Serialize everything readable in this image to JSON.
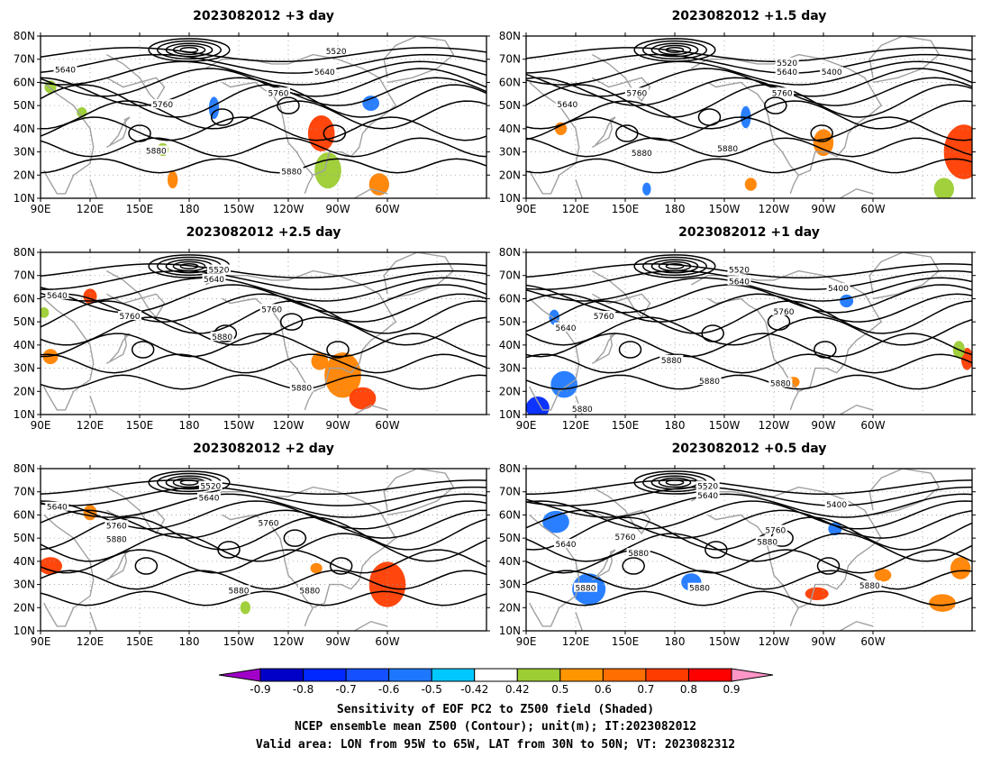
{
  "panels": [
    {
      "title": "2023082012  +3 day",
      "contour_labels": [
        "5640",
        "5520",
        "5640",
        "5760",
        "5760",
        "5880",
        "5880"
      ],
      "shading": [
        {
          "lon": 260,
          "lat": 38,
          "w": 14,
          "h": 14,
          "c": "#ff3c00"
        },
        {
          "lon": 264,
          "lat": 22,
          "w": 14,
          "h": 14,
          "c": "#9ccd32"
        },
        {
          "lon": 295,
          "lat": 16,
          "w": 10,
          "h": 8,
          "c": "#ff8200"
        },
        {
          "lon": 195,
          "lat": 49,
          "w": 4,
          "h": 8,
          "c": "#1e78ff"
        },
        {
          "lon": 290,
          "lat": 51,
          "w": 8,
          "h": 5,
          "c": "#1e78ff"
        },
        {
          "lon": 96,
          "lat": 58,
          "w": 5,
          "h": 4,
          "c": "#9ccd32"
        },
        {
          "lon": 115,
          "lat": 47,
          "w": 4,
          "h": 3,
          "c": "#9ccd32"
        },
        {
          "lon": 164,
          "lat": 31,
          "w": 5,
          "h": 4,
          "c": "#9ccd32"
        },
        {
          "lon": 170,
          "lat": 18,
          "w": 4,
          "h": 6,
          "c": "#ff8200"
        }
      ],
      "label_pos": [
        [
          105,
          65
        ],
        [
          269,
          73
        ],
        [
          262,
          64
        ],
        [
          164,
          50
        ],
        [
          234,
          55
        ],
        [
          160,
          30
        ],
        [
          242,
          21
        ]
      ]
    },
    {
      "title": "2023082012  +1.5 day",
      "contour_labels": [
        "5520",
        "5640",
        "5400",
        "5640",
        "5760",
        "5760",
        "5880",
        "5880"
      ],
      "shading": [
        {
          "lon": 355,
          "lat": 30,
          "w": 22,
          "h": 22,
          "c": "#ff3c00"
        },
        {
          "lon": 270,
          "lat": 34,
          "w": 10,
          "h": 10,
          "c": "#ff8200"
        },
        {
          "lon": 343,
          "lat": 14,
          "w": 10,
          "h": 8,
          "c": "#9ccd32"
        },
        {
          "lon": 223,
          "lat": 45,
          "w": 4,
          "h": 8,
          "c": "#1e78ff"
        },
        {
          "lon": 111,
          "lat": 40,
          "w": 5,
          "h": 4,
          "c": "#ff8200"
        },
        {
          "lon": 163,
          "lat": 14,
          "w": 3,
          "h": 4,
          "c": "#1e78ff"
        },
        {
          "lon": 226,
          "lat": 16,
          "w": 5,
          "h": 4,
          "c": "#ff8200"
        }
      ],
      "label_pos": [
        [
          248,
          68
        ],
        [
          248,
          64
        ],
        [
          275,
          64
        ],
        [
          115,
          50
        ],
        [
          157,
          55
        ],
        [
          245,
          55
        ],
        [
          160,
          29
        ],
        [
          212,
          31
        ],
        [
          252,
          25
        ]
      ]
    },
    {
      "title": "2023082012  +2.5 day",
      "contour_labels": [
        "5520",
        "5640",
        "5640",
        "5760",
        "5760",
        "5880",
        "5880"
      ],
      "shading": [
        {
          "lon": 273,
          "lat": 27,
          "w": 20,
          "h": 18,
          "c": "#ff8200"
        },
        {
          "lon": 285,
          "lat": 17,
          "w": 14,
          "h": 8,
          "c": "#ff3c00"
        },
        {
          "lon": 259,
          "lat": 33,
          "w": 8,
          "h": 6,
          "c": "#ff8200"
        },
        {
          "lon": 120,
          "lat": 61,
          "w": 6,
          "h": 5,
          "c": "#ff3c00"
        },
        {
          "lon": 96,
          "lat": 35,
          "w": 7,
          "h": 5,
          "c": "#ff8200"
        },
        {
          "lon": 92,
          "lat": 54,
          "w": 4,
          "h": 3,
          "c": "#9ccd32"
        }
      ],
      "label_pos": [
        [
          198,
          72
        ],
        [
          195,
          68
        ],
        [
          100,
          61
        ],
        [
          144,
          52
        ],
        [
          230,
          55
        ],
        [
          200,
          43
        ],
        [
          248,
          21
        ]
      ]
    },
    {
      "title": "2023082012  +1 day",
      "contour_labels": [
        "5520",
        "5640",
        "5400",
        "5640",
        "5760",
        "5760",
        "5880",
        "5880",
        "5880",
        "5880"
      ],
      "shading": [
        {
          "lon": 357,
          "lat": 34,
          "w": 5,
          "h": 8,
          "c": "#ff3c00"
        },
        {
          "lon": 113,
          "lat": 23,
          "w": 14,
          "h": 10,
          "c": "#1e78ff"
        },
        {
          "lon": 97,
          "lat": 13,
          "w": 12,
          "h": 8,
          "c": "#0028ff"
        },
        {
          "lon": 107,
          "lat": 52,
          "w": 4,
          "h": 5,
          "c": "#1e78ff"
        },
        {
          "lon": 284,
          "lat": 59,
          "w": 6,
          "h": 4,
          "c": "#1e78ff"
        },
        {
          "lon": 252,
          "lat": 24,
          "w": 5,
          "h": 3,
          "c": "#ff8200"
        },
        {
          "lon": 352,
          "lat": 38,
          "w": 5,
          "h": 6,
          "c": "#9ccd32"
        }
      ],
      "label_pos": [
        [
          219,
          72
        ],
        [
          219,
          67
        ],
        [
          279,
          64
        ],
        [
          114,
          47
        ],
        [
          137,
          52
        ],
        [
          246,
          54
        ],
        [
          178,
          33
        ],
        [
          201,
          24
        ],
        [
          244,
          23
        ],
        [
          124,
          12
        ]
      ]
    },
    {
      "title": "2023082012  +2 day",
      "contour_labels": [
        "5520",
        "5640",
        "5640",
        "5760",
        "5760",
        "5880",
        "5880",
        "5880"
      ],
      "shading": [
        {
          "lon": 300,
          "lat": 30,
          "w": 20,
          "h": 18,
          "c": "#ff3c00"
        },
        {
          "lon": 96,
          "lat": 38,
          "w": 12,
          "h": 6,
          "c": "#ff3c00"
        },
        {
          "lon": 120,
          "lat": 61,
          "w": 6,
          "h": 5,
          "c": "#ff8200"
        },
        {
          "lon": 257,
          "lat": 37,
          "w": 5,
          "h": 3,
          "c": "#ff8200"
        },
        {
          "lon": 214,
          "lat": 20,
          "w": 4,
          "h": 4,
          "c": "#9ccd32"
        }
      ],
      "label_pos": [
        [
          193,
          72
        ],
        [
          192,
          67
        ],
        [
          100,
          63
        ],
        [
          136,
          55
        ],
        [
          228,
          56
        ],
        [
          136,
          49
        ],
        [
          210,
          27
        ],
        [
          253,
          27
        ]
      ]
    },
    {
      "title": "2023082012  +0.5 day",
      "contour_labels": [
        "5520",
        "5640",
        "5400",
        "5640",
        "5760",
        "5760",
        "5880",
        "5880",
        "5880",
        "5880",
        "5880"
      ],
      "shading": [
        {
          "lon": 128,
          "lat": 28,
          "w": 18,
          "h": 12,
          "c": "#1e78ff"
        },
        {
          "lon": 108,
          "lat": 57,
          "w": 14,
          "h": 8,
          "c": "#1e78ff"
        },
        {
          "lon": 190,
          "lat": 31,
          "w": 10,
          "h": 6,
          "c": "#1e78ff"
        },
        {
          "lon": 342,
          "lat": 22,
          "w": 14,
          "h": 6,
          "c": "#ff8200"
        },
        {
          "lon": 353,
          "lat": 37,
          "w": 10,
          "h": 8,
          "c": "#ff8200"
        },
        {
          "lon": 266,
          "lat": 26,
          "w": 12,
          "h": 4,
          "c": "#ff3c00"
        },
        {
          "lon": 306,
          "lat": 34,
          "w": 8,
          "h": 4,
          "c": "#ff8200"
        },
        {
          "lon": 277,
          "lat": 54,
          "w": 6,
          "h": 4,
          "c": "#1e78ff"
        }
      ],
      "label_pos": [
        [
          200,
          72
        ],
        [
          200,
          68
        ],
        [
          278,
          64
        ],
        [
          114,
          47
        ],
        [
          150,
          50
        ],
        [
          241,
          53
        ],
        [
          158,
          43
        ],
        [
          236,
          48
        ],
        [
          126,
          28
        ],
        [
          195,
          28
        ],
        [
          298,
          29
        ]
      ]
    }
  ],
  "axis": {
    "xticks": [
      "90E",
      "120E",
      "150E",
      "180",
      "150W",
      "120W",
      "90W",
      "60W"
    ],
    "yticks": [
      "10N",
      "20N",
      "30N",
      "40N",
      "50N",
      "60N",
      "70N",
      "80N"
    ]
  },
  "colorbar": {
    "labels": [
      "-0.9",
      "-0.8",
      "-0.7",
      "-0.6",
      "-0.5",
      "-0.42",
      "0.42",
      "0.5",
      "0.6",
      "0.7",
      "0.8",
      "0.9"
    ],
    "colors": [
      "#a000c8",
      "#0000c8",
      "#0028ff",
      "#1450ff",
      "#1e78ff",
      "#00c8ff",
      "#ffffff",
      "#9ccd32",
      "#ff9600",
      "#ff6e00",
      "#ff3c00",
      "#ff0000",
      "#ff96c8"
    ]
  },
  "caption": {
    "line1": "Sensitivity of EOF PC2 to Z500 field (Shaded)",
    "line2": "NCEP ensemble mean Z500 (Contour); unit(m); IT:2023082012",
    "line3": "Valid area: LON from 95W to 65W, LAT from 30N to 50N; VT: 2023082312"
  }
}
